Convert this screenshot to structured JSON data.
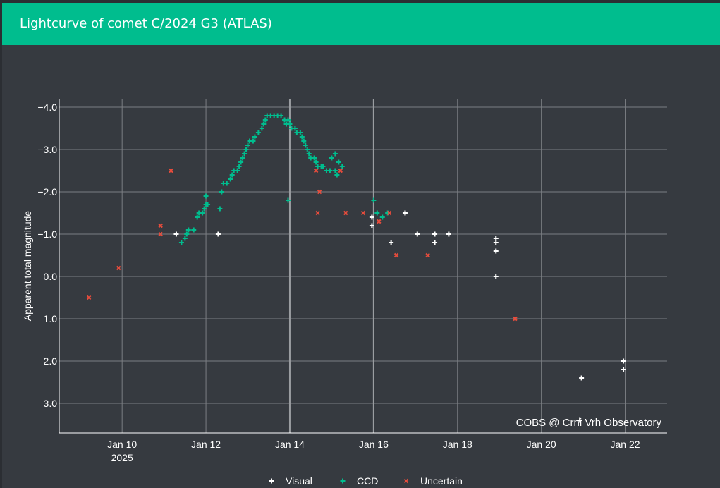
{
  "header": {
    "title": "Lightcurve of comet C/2024 G3 (ATLAS)"
  },
  "chart_data": {
    "type": "scatter",
    "title": "Lightcurve of comet C/2024 G3 (ATLAS)",
    "xlabel": "",
    "ylabel": "Apparent total magnitude",
    "x_type": "date",
    "xlim": [
      "2025-01-08T12:00",
      "2025-01-23T00:00"
    ],
    "ylim": [
      3.7,
      -4.2
    ],
    "y_reversed": true,
    "grid": true,
    "legend_position": "bottom",
    "credit": "COBS @ Crni Vrh Observatory",
    "x_ticks": [
      {
        "value": "2025-01-10T00:00",
        "label": "Jan 10",
        "sublabel": "2025"
      },
      {
        "value": "2025-01-12T00:00",
        "label": "Jan 12"
      },
      {
        "value": "2025-01-14T00:00",
        "label": "Jan 14"
      },
      {
        "value": "2025-01-16T00:00",
        "label": "Jan 16"
      },
      {
        "value": "2025-01-18T00:00",
        "label": "Jan 18"
      },
      {
        "value": "2025-01-20T00:00",
        "label": "Jan 20"
      },
      {
        "value": "2025-01-22T00:00",
        "label": "Jan 22"
      }
    ],
    "y_ticks": [
      {
        "value": -4,
        "label": "−4.0"
      },
      {
        "value": -3,
        "label": "−3.0"
      },
      {
        "value": -2,
        "label": "−2.0"
      },
      {
        "value": -1,
        "label": "−1.0"
      },
      {
        "value": 0,
        "label": "0.0"
      },
      {
        "value": 1,
        "label": "1.0"
      },
      {
        "value": 2,
        "label": "2.0"
      },
      {
        "value": 3,
        "label": "3.0"
      }
    ],
    "vertical_markers": [
      "2025-01-14T00:00",
      "2025-01-16T00:00"
    ],
    "series": [
      {
        "name": "Visual",
        "marker": "plus",
        "color": "#ffffff",
        "points": [
          [
            "2025-01-11T07:00",
            -1.0
          ],
          [
            "2025-01-12T07:00",
            -1.0
          ],
          [
            "2025-01-15T23:00",
            -1.4
          ],
          [
            "2025-01-15T23:00",
            -1.2
          ],
          [
            "2025-01-16T10:00",
            -0.8
          ],
          [
            "2025-01-16T18:00",
            -1.5
          ],
          [
            "2025-01-17T01:00",
            -1.0
          ],
          [
            "2025-01-17T11:00",
            -1.0
          ],
          [
            "2025-01-17T11:00",
            -0.8
          ],
          [
            "2025-01-17T19:00",
            -1.0
          ],
          [
            "2025-01-18T22:00",
            -0.9
          ],
          [
            "2025-01-18T22:00",
            -0.8
          ],
          [
            "2025-01-18T22:00",
            -0.6
          ],
          [
            "2025-01-18T22:00",
            0.0
          ],
          [
            "2025-01-20T23:00",
            2.4
          ],
          [
            "2025-01-20T22:00",
            3.4
          ],
          [
            "2025-01-21T23:00",
            2.0
          ],
          [
            "2025-01-21T23:00",
            2.2
          ]
        ]
      },
      {
        "name": "CCD",
        "marker": "plus",
        "color": "#00bd8e",
        "points": [
          [
            "2025-01-11T10:00",
            -0.8
          ],
          [
            "2025-01-11T12:00",
            -0.9
          ],
          [
            "2025-01-11T13:00",
            -1.0
          ],
          [
            "2025-01-11T14:00",
            -1.1
          ],
          [
            "2025-01-11T17:00",
            -1.1
          ],
          [
            "2025-01-11T19:00",
            -1.4
          ],
          [
            "2025-01-11T20:00",
            -1.5
          ],
          [
            "2025-01-11T22:00",
            -1.5
          ],
          [
            "2025-01-11T23:00",
            -1.6
          ],
          [
            "2025-01-12T00:00",
            -1.7
          ],
          [
            "2025-01-12T00:00",
            -1.9
          ],
          [
            "2025-01-12T01:00",
            -1.7
          ],
          [
            "2025-01-12T08:00",
            -1.6
          ],
          [
            "2025-01-12T09:00",
            -2.0
          ],
          [
            "2025-01-12T10:00",
            -2.2
          ],
          [
            "2025-01-12T12:00",
            -2.2
          ],
          [
            "2025-01-12T14:00",
            -2.3
          ],
          [
            "2025-01-12T15:00",
            -2.4
          ],
          [
            "2025-01-12T16:00",
            -2.5
          ],
          [
            "2025-01-12T18:00",
            -2.5
          ],
          [
            "2025-01-12T19:00",
            -2.6
          ],
          [
            "2025-01-12T20:00",
            -2.7
          ],
          [
            "2025-01-12T21:00",
            -2.8
          ],
          [
            "2025-01-12T22:00",
            -2.9
          ],
          [
            "2025-01-12T23:00",
            -3.0
          ],
          [
            "2025-01-13T00:00",
            -3.1
          ],
          [
            "2025-01-13T01:00",
            -3.2
          ],
          [
            "2025-01-13T03:00",
            -3.2
          ],
          [
            "2025-01-13T04:00",
            -3.3
          ],
          [
            "2025-01-13T06:00",
            -3.4
          ],
          [
            "2025-01-13T08:00",
            -3.5
          ],
          [
            "2025-01-13T09:00",
            -3.6
          ],
          [
            "2025-01-13T10:00",
            -3.7
          ],
          [
            "2025-01-13T11:00",
            -3.8
          ],
          [
            "2025-01-13T13:00",
            -3.8
          ],
          [
            "2025-01-13T15:00",
            -3.8
          ],
          [
            "2025-01-13T17:00",
            -3.8
          ],
          [
            "2025-01-13T19:00",
            -3.8
          ],
          [
            "2025-01-13T21:00",
            -3.7
          ],
          [
            "2025-01-13T22:00",
            -3.6
          ],
          [
            "2025-01-13T23:00",
            -3.7
          ],
          [
            "2025-01-14T00:00",
            -3.6
          ],
          [
            "2025-01-14T01:00",
            -3.5
          ],
          [
            "2025-01-14T03:00",
            -3.5
          ],
          [
            "2025-01-14T04:00",
            -3.4
          ],
          [
            "2025-01-14T06:00",
            -3.4
          ],
          [
            "2025-01-14T07:00",
            -3.3
          ],
          [
            "2025-01-14T08:00",
            -3.2
          ],
          [
            "2025-01-14T09:00",
            -3.1
          ],
          [
            "2025-01-14T10:00",
            -3.0
          ],
          [
            "2025-01-14T11:00",
            -2.9
          ],
          [
            "2025-01-14T12:00",
            -2.8
          ],
          [
            "2025-01-14T14:00",
            -2.8
          ],
          [
            "2025-01-14T15:00",
            -2.7
          ],
          [
            "2025-01-14T16:00",
            -2.6
          ],
          [
            "2025-01-14T18:00",
            -2.6
          ],
          [
            "2025-01-14T19:00",
            -2.6
          ],
          [
            "2025-01-14T21:00",
            -2.5
          ],
          [
            "2025-01-14T23:00",
            -2.5
          ],
          [
            "2025-01-15T00:00",
            -2.8
          ],
          [
            "2025-01-15T02:00",
            -2.9
          ],
          [
            "2025-01-15T02:00",
            -2.5
          ],
          [
            "2025-01-15T03:00",
            -2.4
          ],
          [
            "2025-01-15T04:00",
            -2.7
          ],
          [
            "2025-01-15T06:00",
            -2.6
          ],
          [
            "2025-01-13T23:00",
            -1.8
          ],
          [
            "2025-01-16T00:00",
            -1.8
          ],
          [
            "2025-01-16T02:00",
            -1.5
          ],
          [
            "2025-01-16T08:00",
            -1.5
          ],
          [
            "2025-01-16T05:00",
            -1.4
          ]
        ]
      },
      {
        "name": "Uncertain",
        "marker": "x",
        "color": "#e74c3c",
        "points": [
          [
            "2025-01-09T05:00",
            0.5
          ],
          [
            "2025-01-09T22:00",
            -0.2
          ],
          [
            "2025-01-10T22:00",
            -1.2
          ],
          [
            "2025-01-10T22:00",
            -1.0
          ],
          [
            "2025-01-11T04:00",
            -2.5
          ],
          [
            "2025-01-14T15:00",
            -2.5
          ],
          [
            "2025-01-14T16:00",
            -1.5
          ],
          [
            "2025-01-14T17:00",
            -2.0
          ],
          [
            "2025-01-15T05:00",
            -2.5
          ],
          [
            "2025-01-15T08:00",
            -1.5
          ],
          [
            "2025-01-15T18:00",
            -1.5
          ],
          [
            "2025-01-16T03:00",
            -1.3
          ],
          [
            "2025-01-16T09:00",
            -1.5
          ],
          [
            "2025-01-16T13:00",
            -0.5
          ],
          [
            "2025-01-17T07:00",
            -0.5
          ],
          [
            "2025-01-19T09:00",
            1.0
          ]
        ]
      }
    ]
  }
}
